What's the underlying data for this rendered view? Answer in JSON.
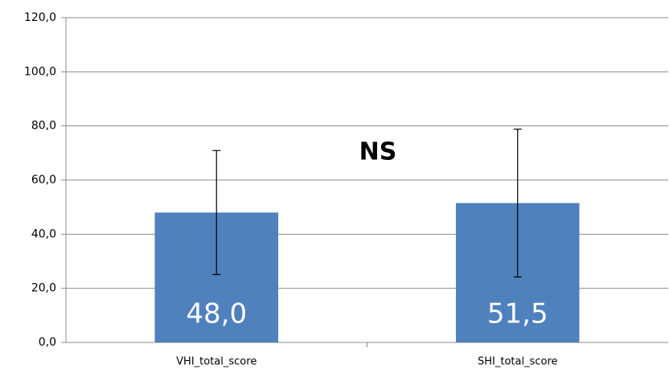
{
  "chart_data": {
    "type": "bar",
    "categories": [
      "VHI_total_score",
      "SHI_total_score"
    ],
    "values": [
      48.0,
      51.5
    ],
    "value_labels": [
      "48,0",
      "51,5"
    ],
    "errors": [
      22.9,
      27.3
    ],
    "color": "#4f81bd",
    "annotation": "NS",
    "ylim": [
      0,
      120
    ],
    "yticks": [
      {
        "value": 0,
        "label": "0,0"
      },
      {
        "value": 20,
        "label": "20,0"
      },
      {
        "value": 40,
        "label": "40,0"
      },
      {
        "value": 60,
        "label": "60,0"
      },
      {
        "value": 80,
        "label": "80,0"
      },
      {
        "value": 100,
        "label": "100,0"
      },
      {
        "value": 120,
        "label": "120,0"
      }
    ],
    "grid": true
  }
}
